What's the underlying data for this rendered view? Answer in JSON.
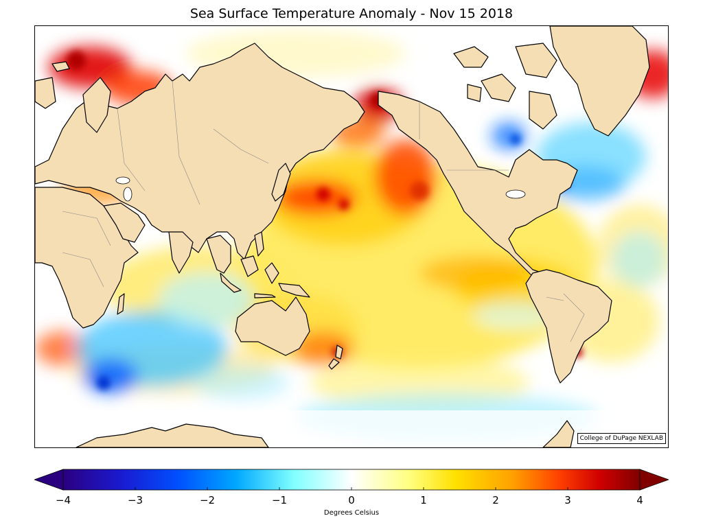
{
  "title": "Sea Surface Temperature Anomaly - Nov 15 2018",
  "credit": "College of DuPage NEXLAB",
  "colorbar": {
    "label": "Degrees Celsius",
    "min": -4,
    "max": 4,
    "ticks": [
      -4,
      -3,
      -2,
      -1,
      0,
      1,
      2,
      3,
      4
    ],
    "tick_labels": [
      "−4",
      "−3",
      "−2",
      "−1",
      "0",
      "1",
      "2",
      "3",
      "4"
    ],
    "colors": [
      "#2b0080",
      "#1a1ad0",
      "#0060ff",
      "#00b0ff",
      "#80ffff",
      "#ffffff",
      "#ffff80",
      "#ffe000",
      "#ffa000",
      "#ff4000",
      "#d00000",
      "#800000"
    ]
  },
  "palette": {
    "land": "#f5deb3",
    "coast": "#000000",
    "border": "#888888",
    "ocean_neutral": "#ffffff"
  }
}
